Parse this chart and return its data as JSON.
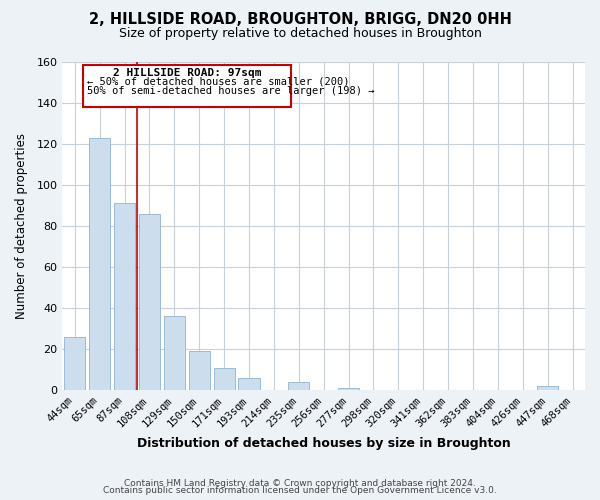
{
  "title": "2, HILLSIDE ROAD, BROUGHTON, BRIGG, DN20 0HH",
  "subtitle": "Size of property relative to detached houses in Broughton",
  "xlabel": "Distribution of detached houses by size in Broughton",
  "ylabel": "Number of detached properties",
  "bar_color": "#ccdded",
  "bar_edge_color": "#9bbbd4",
  "categories": [
    "44sqm",
    "65sqm",
    "87sqm",
    "108sqm",
    "129sqm",
    "150sqm",
    "171sqm",
    "193sqm",
    "214sqm",
    "235sqm",
    "256sqm",
    "277sqm",
    "298sqm",
    "320sqm",
    "341sqm",
    "362sqm",
    "383sqm",
    "404sqm",
    "426sqm",
    "447sqm",
    "468sqm"
  ],
  "values": [
    26,
    123,
    91,
    86,
    36,
    19,
    11,
    6,
    0,
    4,
    0,
    1,
    0,
    0,
    0,
    0,
    0,
    0,
    0,
    2,
    0
  ],
  "ylim": [
    0,
    160
  ],
  "yticks": [
    0,
    20,
    40,
    60,
    80,
    100,
    120,
    140,
    160
  ],
  "marker_color": "#cc0000",
  "annotation_line1": "2 HILLSIDE ROAD: 97sqm",
  "annotation_line2": "← 50% of detached houses are smaller (200)",
  "annotation_line3": "50% of semi-detached houses are larger (198) →",
  "footer1": "Contains HM Land Registry data © Crown copyright and database right 2024.",
  "footer2": "Contains public sector information licensed under the Open Government Licence v3.0.",
  "background_color": "#edf2f7",
  "plot_background": "#ffffff",
  "grid_color": "#c8d0d8"
}
